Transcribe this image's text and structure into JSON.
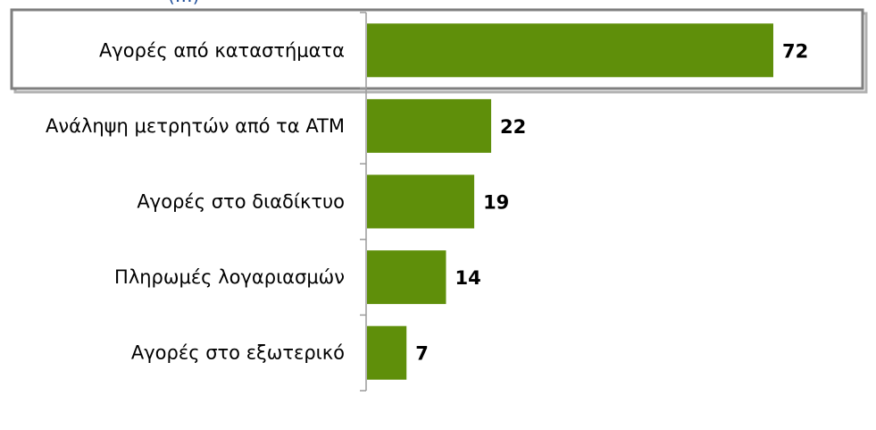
{
  "chart_data": {
    "type": "bar",
    "orientation": "horizontal",
    "categories": [
      "Αγορές από καταστήματα",
      "Ανάληψη μετρητών από τα ATM",
      "Αγορές στο διαδίκτυο",
      "Πληρωμές λογαριασμών",
      "Αγορές στο εξωτερικό"
    ],
    "values": [
      72,
      22,
      19,
      14,
      7
    ],
    "value_labels": [
      "72",
      "22",
      "19",
      "14",
      "7"
    ],
    "highlighted_category": "Αγορές από καταστήματα",
    "bar_color": "#5f8f0a",
    "highlight_border_color": "#7f7f7f",
    "grid": false,
    "legend": "none",
    "xlim": [
      0,
      100
    ]
  }
}
